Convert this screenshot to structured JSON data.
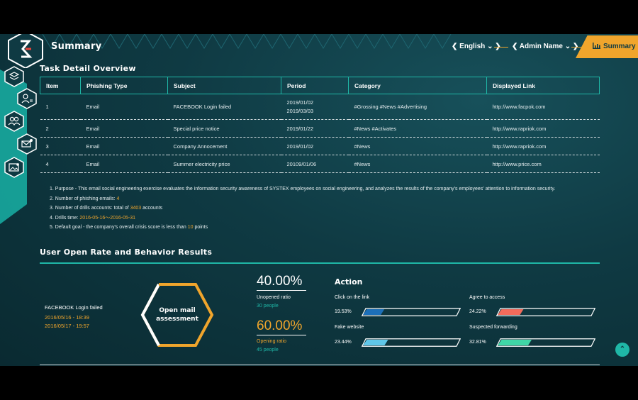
{
  "header": {
    "title": "Summary",
    "language": "English",
    "admin": "Admin Name",
    "active_tab": "Summary"
  },
  "sidebar": {
    "items": [
      {
        "icon": "layers-icon"
      },
      {
        "icon": "user-settings-icon"
      },
      {
        "icon": "users-icon"
      },
      {
        "icon": "mail-settings-icon"
      },
      {
        "icon": "image-settings-icon"
      }
    ]
  },
  "task_detail": {
    "title": "Task Detail Overview",
    "columns": [
      "Item",
      "Phishing Type",
      "Subject",
      "Period",
      "Category",
      "Displayed Link"
    ],
    "rows": [
      {
        "item": "1",
        "type": "Email",
        "subject": "FACEBOOK Login failed",
        "period": [
          "2019/01/02",
          "2019/03/03"
        ],
        "category": "#Grossing #News #Advertising",
        "link": "http://www.facpok.com"
      },
      {
        "item": "2",
        "type": "Email",
        "subject": "Special price notice",
        "period": [
          "2019/01/22"
        ],
        "category": "#News #Activates",
        "link": "http://www.rapriok.com"
      },
      {
        "item": "3",
        "type": "Email",
        "subject": "Company Annocement",
        "period": [
          "2019/01/02"
        ],
        "category": "#News",
        "link": "http://www.rapriok.com"
      },
      {
        "item": "4",
        "type": "Email",
        "subject": "Summer electricity price",
        "period": [
          "20109/01/06"
        ],
        "category": "#News",
        "link": "http://www.price.com"
      }
    ]
  },
  "notes": {
    "purpose": "1. Purpose - This email social engineering exercise evaluates the information security awareness of SYSTEX employees on social engineering, and analyzes the results of the company's employees' attention to information security.",
    "emails_prefix": "2. Number of phishing emails: ",
    "emails_value": "4",
    "accounts_prefix": "3. Number of drills accounts: total of ",
    "accounts_value": "3403",
    "accounts_suffix": " accounts",
    "time_prefix": "4. Drills time: ",
    "time_value": "2016-05-16～2016-05-31",
    "goal_prefix": "5. Default goal - the company's overall crisis score is less than ",
    "goal_value": "10",
    "goal_suffix": " points"
  },
  "results": {
    "title": "User Open Rate and Behavior Results",
    "event_name": "FACEBOOK Login failed",
    "dates": [
      "2016/05/16 - 18:39",
      "2016/05/17 - 19:57"
    ],
    "assessment_line1": "Open mail",
    "assessment_line2": "assessment",
    "unopened": {
      "value": "40.00%",
      "label": "Unopened ratio",
      "people": "30 people"
    },
    "opening": {
      "value": "60.00%",
      "label": "Opening ratio",
      "people": "45 people"
    },
    "action": {
      "title": "Action",
      "items": [
        {
          "label": "Click on the link",
          "value": "19.53%",
          "fraction": 0.1953,
          "color": "#1c6fb8"
        },
        {
          "label": "Agree to access",
          "value": "24.22%",
          "fraction": 0.2422,
          "color": "#f26b5b"
        },
        {
          "label": "Fake website",
          "value": "23.44%",
          "fraction": 0.2344,
          "color": "#5fc6e8"
        },
        {
          "label": "Suspected forwarding",
          "value": "32.81%",
          "fraction": 0.3281,
          "color": "#3fd6a6"
        }
      ]
    }
  },
  "colors": {
    "accent": "#f0a52c",
    "teal": "#1fb7a7",
    "bg": "#0f3a43"
  }
}
